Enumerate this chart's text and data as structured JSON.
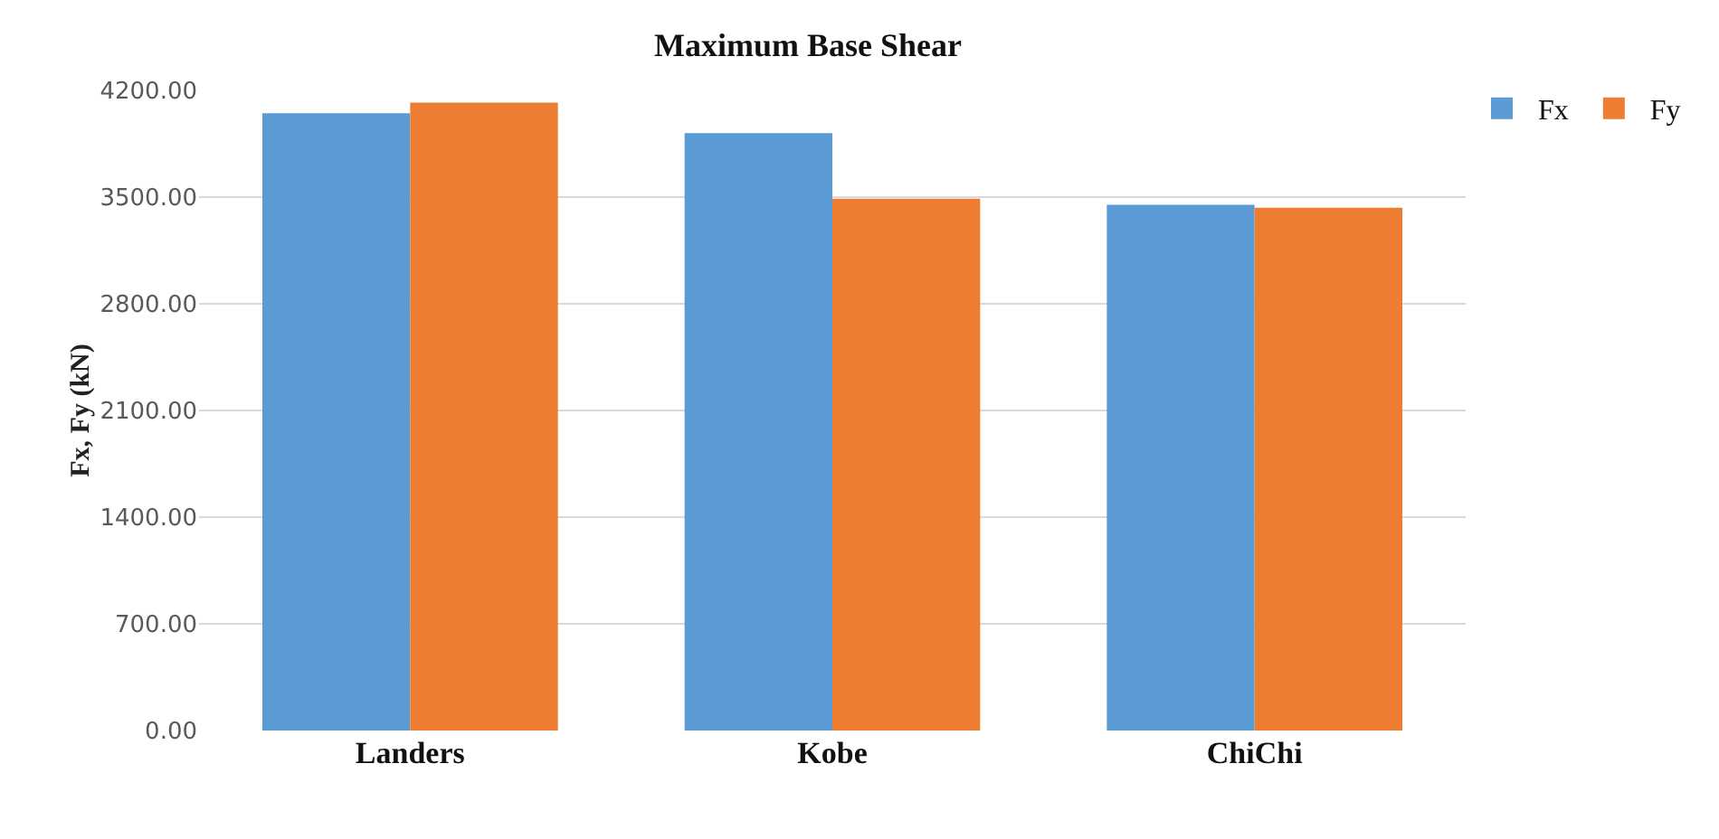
{
  "chart_data": {
    "type": "bar",
    "title": "Maximum Base Shear",
    "ylabel": "Fx, Fy (kN)",
    "categories": [
      "Landers",
      "Kobe",
      "ChiChi"
    ],
    "series": [
      {
        "name": "Fx",
        "color": "#5b9bd5",
        "values": [
          4050,
          3920,
          3450
        ]
      },
      {
        "name": "Fy",
        "color": "#ed7d31",
        "values": [
          4120,
          3490,
          3430
        ]
      }
    ],
    "ylim": [
      0,
      4200
    ],
    "yticks": [
      {
        "value": 0,
        "label": "0.00"
      },
      {
        "value": 700,
        "label": "700.00"
      },
      {
        "value": 1400,
        "label": "1400.00"
      },
      {
        "value": 2100,
        "label": "2100.00"
      },
      {
        "value": 2800,
        "label": "2800.00"
      },
      {
        "value": 3500,
        "label": "3500.00"
      },
      {
        "value": 4200,
        "label": "4200.00"
      }
    ],
    "grid": "y",
    "legend": "top right"
  }
}
